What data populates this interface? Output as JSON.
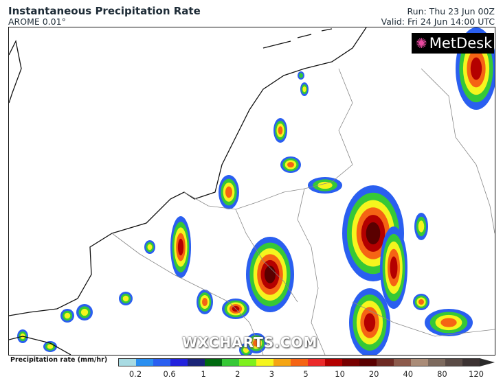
{
  "header": {
    "title": "Instantaneous Precipitation Rate",
    "model": "AROME 0.01°",
    "run": "Run: Thu 23 Jun 00Z",
    "valid": "Valid: Fri 24 Jun 14:00 UTC"
  },
  "map": {
    "logo": "MetDesk",
    "watermark": "WXCHARTS.COM"
  },
  "legend": {
    "label": "Precipitation rate (mm/hr)",
    "colors": [
      "#a8dbe3",
      "#2a8ff0",
      "#2a5ff0",
      "#2222dd",
      "#1a2478",
      "#006a10",
      "#36c836",
      "#7ef01e",
      "#f5f51e",
      "#f5a514",
      "#f56414",
      "#eb2a2a",
      "#b40000",
      "#780000",
      "#5a0000",
      "#6e2a23",
      "#8c5a4b",
      "#aa8c78",
      "#7d6a5e",
      "#5a4b46",
      "#3c3232"
    ],
    "ticks": [
      "0.2",
      "0.6",
      "1",
      "2",
      "3",
      "5",
      "10",
      "20",
      "40",
      "80",
      "120"
    ]
  }
}
